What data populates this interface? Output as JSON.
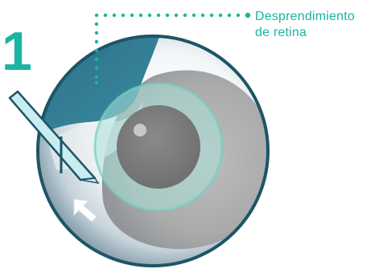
{
  "step": {
    "number": "1"
  },
  "callout": {
    "label_line1": "Desprendimiento",
    "label_line2": "de retina"
  },
  "colors": {
    "accent": "#1ab5a0",
    "eye_rim": "#1d5566",
    "detached_retina": "#2f7c91",
    "pupil": "#7d7d7d",
    "iris_ring": "#76cfc0",
    "instrument": "#c9ecf0"
  },
  "icons": {
    "arrow": "arrow-up-left-icon"
  }
}
